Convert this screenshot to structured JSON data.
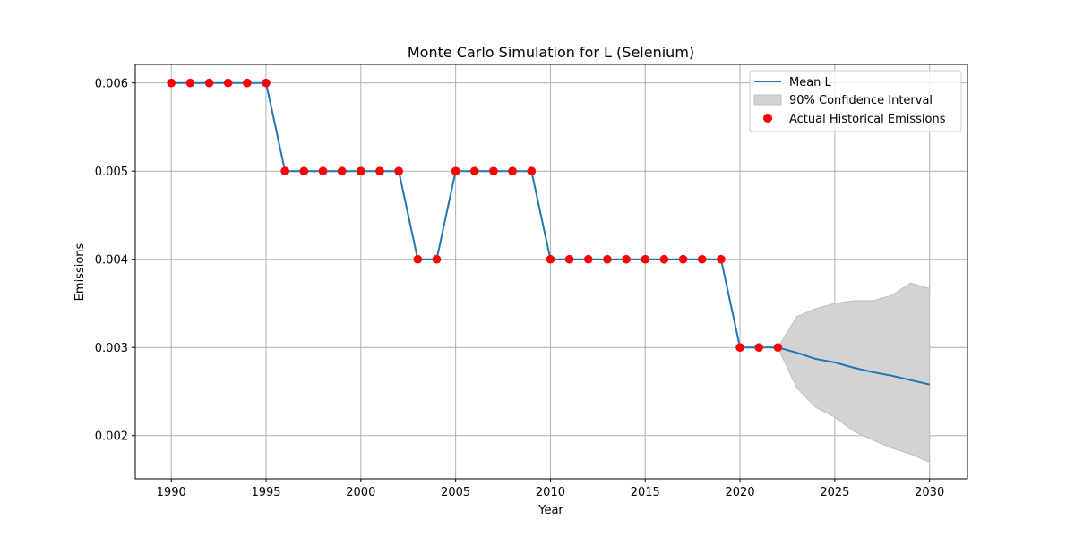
{
  "chart_data": {
    "type": "line",
    "title": "Monte Carlo Simulation for L (Selenium)",
    "xlabel": "Year",
    "ylabel": "Emissions",
    "xlim": [
      1988.1,
      2032.0
    ],
    "ylim": [
      0.00151,
      0.00621
    ],
    "x_ticks": [
      1990,
      1995,
      2000,
      2005,
      2010,
      2015,
      2020,
      2025,
      2030
    ],
    "x_tick_labels": [
      "1990",
      "1995",
      "2000",
      "2005",
      "2010",
      "2015",
      "2020",
      "2025",
      "2030"
    ],
    "y_ticks": [
      0.002,
      0.003,
      0.004,
      0.005,
      0.006
    ],
    "y_tick_labels": [
      "0.002",
      "0.003",
      "0.004",
      "0.005",
      "0.006"
    ],
    "grid": true,
    "legend_position": "top-right",
    "legend": [
      "Mean L",
      "90% Confidence Interval",
      "Actual Historical Emissions"
    ],
    "colors": {
      "mean_line": "#1f77b4",
      "ci_fill": "#d3d3d3",
      "ci_edge": "#bdbdbd",
      "historical_points": "#ff0000",
      "grid": "#b0b0b0",
      "axis": "#000000"
    },
    "series": [
      {
        "name": "Mean L",
        "type": "line",
        "x": [
          1990,
          1991,
          1992,
          1993,
          1994,
          1995,
          1996,
          1997,
          1998,
          1999,
          2000,
          2001,
          2002,
          2003,
          2004,
          2005,
          2006,
          2007,
          2008,
          2009,
          2010,
          2011,
          2012,
          2013,
          2014,
          2015,
          2016,
          2017,
          2018,
          2019,
          2020,
          2021,
          2022,
          2023,
          2024,
          2025,
          2026,
          2027,
          2028,
          2029,
          2030
        ],
        "y": [
          0.006,
          0.006,
          0.006,
          0.006,
          0.006,
          0.006,
          0.005,
          0.005,
          0.005,
          0.005,
          0.005,
          0.005,
          0.005,
          0.004,
          0.004,
          0.005,
          0.005,
          0.005,
          0.005,
          0.005,
          0.004,
          0.004,
          0.004,
          0.004,
          0.004,
          0.004,
          0.004,
          0.004,
          0.004,
          0.004,
          0.003,
          0.003,
          0.003,
          0.00294,
          0.00287,
          0.00283,
          0.00277,
          0.00272,
          0.00268,
          0.00263,
          0.00258
        ]
      },
      {
        "name": "90% Confidence Interval",
        "type": "area",
        "x": [
          2022,
          2023,
          2024,
          2025,
          2026,
          2027,
          2028,
          2029,
          2030
        ],
        "lower": [
          0.003,
          0.00254,
          0.00232,
          0.00221,
          0.00205,
          0.00195,
          0.00186,
          0.00179,
          0.0017
        ],
        "upper": [
          0.003,
          0.00335,
          0.00344,
          0.0035,
          0.00353,
          0.00353,
          0.00359,
          0.00373,
          0.00367
        ]
      },
      {
        "name": "Actual Historical Emissions",
        "type": "scatter",
        "x": [
          1990,
          1991,
          1992,
          1993,
          1994,
          1995,
          1996,
          1997,
          1998,
          1999,
          2000,
          2001,
          2002,
          2003,
          2004,
          2005,
          2006,
          2007,
          2008,
          2009,
          2010,
          2011,
          2012,
          2013,
          2014,
          2015,
          2016,
          2017,
          2018,
          2019,
          2020,
          2021,
          2022
        ],
        "y": [
          0.006,
          0.006,
          0.006,
          0.006,
          0.006,
          0.006,
          0.005,
          0.005,
          0.005,
          0.005,
          0.005,
          0.005,
          0.005,
          0.004,
          0.004,
          0.005,
          0.005,
          0.005,
          0.005,
          0.005,
          0.004,
          0.004,
          0.004,
          0.004,
          0.004,
          0.004,
          0.004,
          0.004,
          0.004,
          0.004,
          0.003,
          0.003,
          0.003
        ]
      }
    ]
  }
}
